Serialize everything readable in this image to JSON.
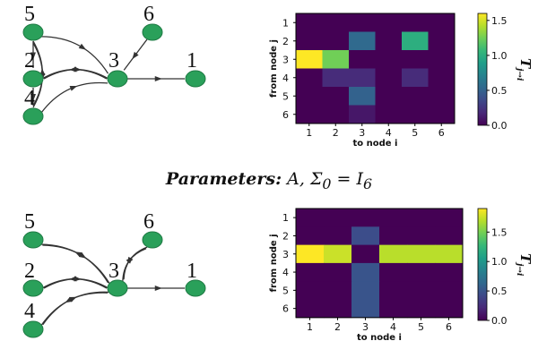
{
  "colors": {
    "node_fill": "#2aa05a",
    "node_stroke": "#1f7a44",
    "edge": "#333333",
    "viridis": [
      "#440154",
      "#482878",
      "#3e4989",
      "#31688e",
      "#26828e",
      "#1f9e89",
      "#35b779",
      "#6ece58",
      "#b5de2b",
      "#fde725"
    ]
  },
  "parameters": {
    "lead": "Parameters:",
    "formula": "A, Σ",
    "sub0": "0",
    "eq": " = I",
    "sub6": "6"
  },
  "panels": [
    {
      "graph": {
        "nodes": [
          {
            "id": "5",
            "label": "5"
          },
          {
            "id": "6",
            "label": "6"
          },
          {
            "id": "2",
            "label": "2"
          },
          {
            "id": "3",
            "label": "3"
          },
          {
            "id": "1",
            "label": "1"
          },
          {
            "id": "4",
            "label": "4"
          }
        ],
        "edges": [
          {
            "from": "5",
            "to": "3",
            "curve": "up"
          },
          {
            "from": "6",
            "to": "3",
            "curve": "none"
          },
          {
            "from": "2",
            "to": "3",
            "curve": "up"
          },
          {
            "from": "3",
            "to": "2",
            "curve": "down"
          },
          {
            "from": "4",
            "to": "3",
            "curve": "up"
          },
          {
            "from": "3",
            "to": "1",
            "curve": "none"
          },
          {
            "from": "5",
            "to": "4",
            "curve": "left"
          },
          {
            "from": "4",
            "to": "5",
            "curve": "right"
          },
          {
            "from": "5",
            "to": "2",
            "curve": "none"
          },
          {
            "from": "2",
            "to": "4",
            "curve": "none"
          }
        ]
      },
      "chart_data": {
        "type": "heatmap",
        "x_ticks": [
          "1",
          "2",
          "3",
          "4",
          "5",
          "6"
        ],
        "y_ticks": [
          "1",
          "2",
          "3",
          "4",
          "5",
          "6"
        ],
        "xlabel": "to node i",
        "ylabel": "from node j",
        "colorbar_label": "T",
        "colorbar_sub": "j→i",
        "colorbar_ticks": [
          0.0,
          0.5,
          1.0,
          1.5
        ],
        "colorbar_tick_labels": [
          "0.0",
          "0.5",
          "1.0",
          "1.5"
        ],
        "vmin": 0,
        "vmax": 1.6,
        "values": [
          [
            0,
            0,
            0,
            0,
            0,
            0
          ],
          [
            0,
            0,
            0.55,
            0,
            1.0,
            0
          ],
          [
            1.6,
            1.25,
            0,
            0,
            0,
            0
          ],
          [
            0,
            0.2,
            0.2,
            0,
            0.2,
            0
          ],
          [
            0,
            0,
            0.5,
            0,
            0,
            0
          ],
          [
            0,
            0,
            0.1,
            0,
            0,
            0
          ]
        ]
      }
    },
    {
      "graph": {
        "nodes": [
          {
            "id": "5",
            "label": "5"
          },
          {
            "id": "6",
            "label": "6"
          },
          {
            "id": "2",
            "label": "2"
          },
          {
            "id": "3",
            "label": "3"
          },
          {
            "id": "1",
            "label": "1"
          },
          {
            "id": "4",
            "label": "4"
          }
        ],
        "edges": [
          {
            "from": "5",
            "to": "3",
            "curve": "up"
          },
          {
            "from": "3",
            "to": "5",
            "curve": "down"
          },
          {
            "from": "3",
            "to": "6",
            "curve": "left"
          },
          {
            "from": "6",
            "to": "3",
            "curve": "right"
          },
          {
            "from": "2",
            "to": "3",
            "curve": "up"
          },
          {
            "from": "3",
            "to": "2",
            "curve": "down"
          },
          {
            "from": "4",
            "to": "3",
            "curve": "up"
          },
          {
            "from": "3",
            "to": "4",
            "curve": "down"
          },
          {
            "from": "3",
            "to": "1",
            "curve": "none"
          }
        ]
      },
      "chart_data": {
        "type": "heatmap",
        "x_ticks": [
          "1",
          "2",
          "3",
          "4",
          "5",
          "6"
        ],
        "y_ticks": [
          "1",
          "2",
          "3",
          "4",
          "5",
          "6"
        ],
        "xlabel": "to node i",
        "ylabel": "from node j",
        "colorbar_label": "T",
        "colorbar_sub": "j→i",
        "colorbar_ticks": [
          0.0,
          0.5,
          1.0,
          1.5
        ],
        "colorbar_tick_labels": [
          "0.0",
          "0.5",
          "1.0",
          "1.5"
        ],
        "vmin": 0,
        "vmax": 1.9,
        "values": [
          [
            0,
            0,
            0,
            0,
            0,
            0
          ],
          [
            0,
            0,
            0.45,
            0,
            0,
            0
          ],
          [
            1.9,
            1.75,
            0,
            1.7,
            1.7,
            1.7
          ],
          [
            0,
            0,
            0.5,
            0,
            0,
            0
          ],
          [
            0,
            0,
            0.5,
            0,
            0,
            0
          ],
          [
            0,
            0,
            0.5,
            0,
            0,
            0
          ]
        ]
      }
    }
  ]
}
